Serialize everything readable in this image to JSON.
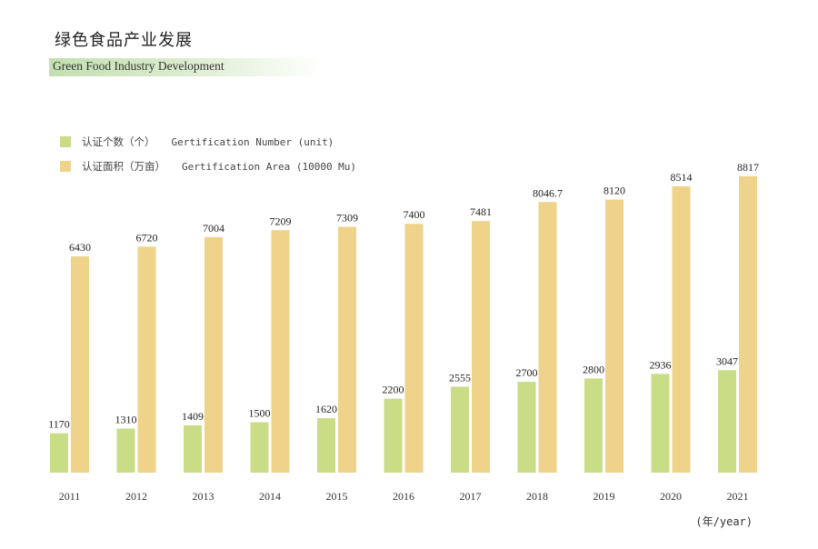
{
  "header": {
    "title_cn": "绿色食品产业发展",
    "title_en": "Green Food Industry Development"
  },
  "legend": [
    {
      "cn": "认证个数（个）",
      "en": "Gertification Number (unit)",
      "color": "#c9dc86"
    },
    {
      "cn": "认证面积（万亩）",
      "en": "Gertification Area (10000 Mu)",
      "color": "#efd38a"
    }
  ],
  "x_unit_label": "(年/year)",
  "chart_data": {
    "type": "bar",
    "categories": [
      "2011",
      "2012",
      "2013",
      "2014",
      "2015",
      "2016",
      "2017",
      "2018",
      "2019",
      "2020",
      "2021"
    ],
    "series": [
      {
        "name": "认证个数（个） Gertification Number (unit)",
        "values": [
          1170,
          1310,
          1409,
          1500,
          1620,
          2200,
          2555,
          2700,
          2800,
          2936,
          3047
        ],
        "labels": [
          "1170",
          "1310",
          "1409",
          "1500",
          "1620",
          "2200",
          "2555",
          "2700",
          "2800",
          "2936",
          "3047"
        ]
      },
      {
        "name": "认证面积（万亩） Gertification Area (10000 Mu)",
        "values": [
          6430,
          6720,
          7004,
          7209,
          7309,
          7400,
          7481,
          8046.7,
          8120,
          8514,
          8817
        ],
        "labels": [
          "6430",
          "6720",
          "7004",
          "7209",
          "7309",
          "7400",
          "7481",
          "8046.7",
          "8120",
          "8514",
          "8817"
        ]
      }
    ],
    "colors": [
      "#c9dc86",
      "#efd38a"
    ],
    "ylim": [
      0,
      10000
    ],
    "grid": false,
    "legend_position": "top-left"
  }
}
